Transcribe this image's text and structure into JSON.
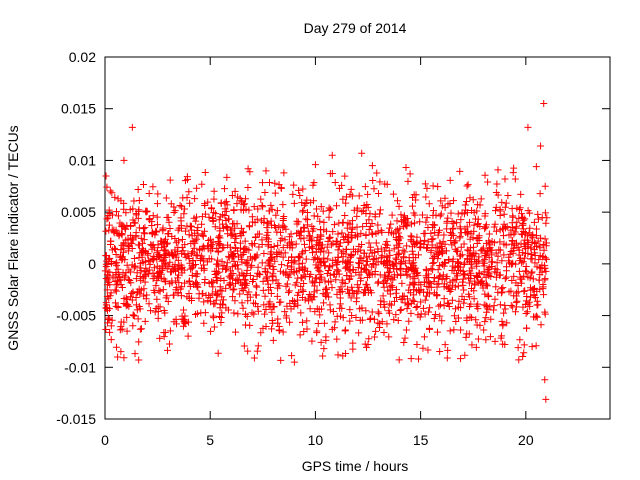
{
  "chart_data": {
    "type": "scatter",
    "title": "Day 279 of 2014",
    "xlabel": "GPS time / hours",
    "ylabel": "GNSS Solar Flare indicator / TECUs",
    "xlim": [
      0,
      24
    ],
    "ylim": [
      -0.015,
      0.02
    ],
    "x_ticks": [
      "0",
      "5",
      "10",
      "15",
      "20"
    ],
    "y_ticks": [
      "-0.015",
      "-0.01",
      "-0.005",
      "0",
      "0.005",
      "0.01",
      "0.015",
      "0.02"
    ],
    "x_tick_values": [
      0,
      5,
      10,
      15,
      20
    ],
    "y_tick_values": [
      -0.015,
      -0.01,
      -0.005,
      0,
      0.005,
      0.01,
      0.015,
      0.02
    ],
    "marker": "plus",
    "grid": false,
    "legend": "none",
    "colors": {
      "points": "#ff0000",
      "axes": "#000000",
      "background": "#ffffff"
    },
    "series": [
      {
        "x": [
          0.05,
          0.12,
          0.2,
          0.3,
          0.45,
          0.6,
          0.9,
          1.05,
          1.3,
          1.6,
          2.1,
          2.6,
          3.1,
          3.4,
          3.9,
          4.3,
          4.6,
          5.2,
          5.7,
          6.2,
          6.8,
          7.1,
          7.6,
          8.0,
          8.5,
          9.0,
          9.2,
          9.6,
          10.0,
          10.4,
          10.8,
          11.3,
          11.7,
          12.2,
          12.5,
          13.0,
          13.4,
          13.9,
          14.2,
          14.5,
          14.9,
          15.3,
          15.8,
          16.3,
          16.9,
          17.5,
          18.1,
          18.6,
          19.0,
          19.5,
          19.9,
          20.1,
          20.3,
          20.5,
          20.7,
          20.85,
          20.9,
          20.95
        ],
        "y": [
          0.0085,
          -0.0045,
          0.0052,
          -0.006,
          0.0015,
          -0.009,
          0.01,
          -0.0065,
          0.0132,
          -0.0093,
          0.0068,
          -0.0072,
          0.0081,
          -0.0058,
          0.0064,
          -0.0049,
          0.0077,
          -0.0061,
          0.0059,
          -0.0066,
          0.0092,
          -0.0091,
          0.0069,
          -0.0074,
          0.0088,
          -0.0095,
          0.0071,
          -0.0063,
          0.0096,
          -0.0082,
          0.0105,
          -0.0089,
          0.0072,
          0.0107,
          -0.0078,
          0.0068,
          -0.0058,
          0.0061,
          -0.0076,
          0.0087,
          -0.0092,
          0.0073,
          -0.0066,
          0.0058,
          -0.0064,
          0.0062,
          -0.0052,
          0.0069,
          -0.0078,
          0.0082,
          -0.0086,
          0.0132,
          -0.008,
          0.0094,
          0.0114,
          0.0155,
          -0.0112,
          -0.0131
        ],
        "dense_band": {
          "x_from": 0,
          "x_to": 21,
          "y_mean": 0.0,
          "y_spread": 0.0035
        }
      }
    ]
  }
}
